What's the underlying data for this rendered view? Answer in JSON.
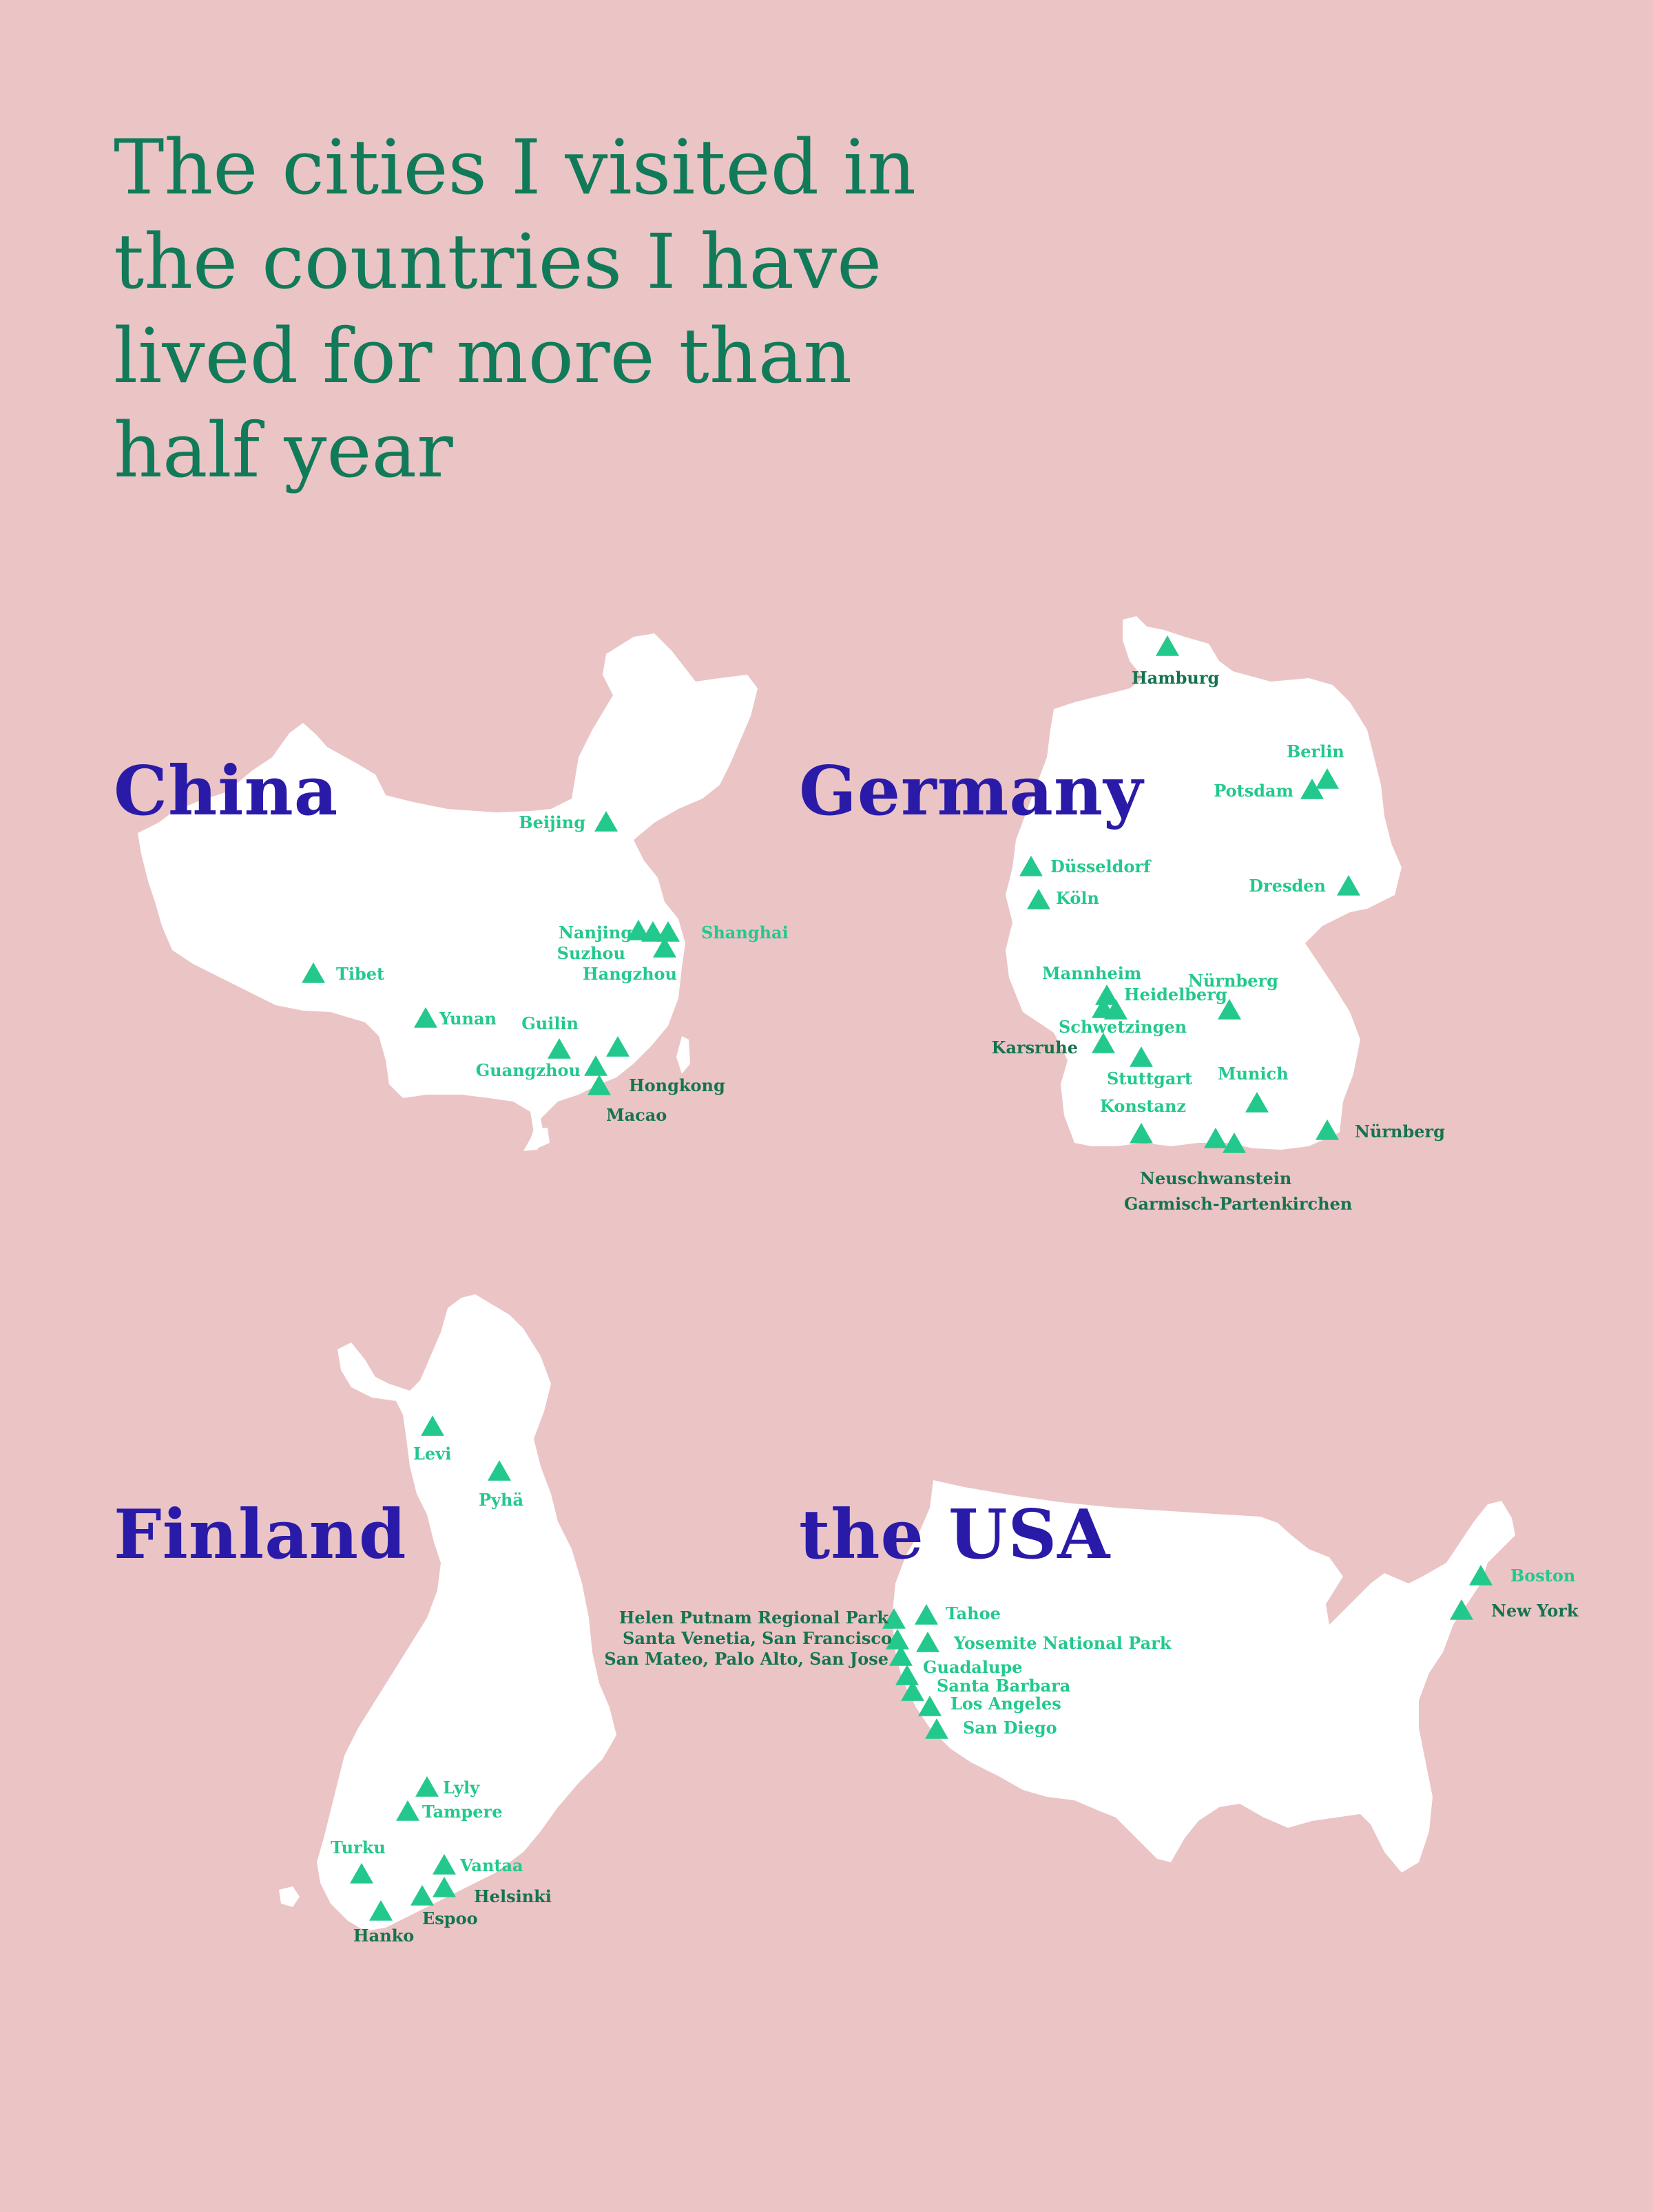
{
  "title": "The cities I visited in the countries I have lived for more than half year",
  "colors": {
    "background": "#ebc4c6",
    "title": "#117a58",
    "country": "#2a1aa8",
    "land": "#ffffff",
    "marker": "#23c98c",
    "label_light": "#23c98c",
    "label_dark": "#15744f"
  },
  "marker_shape": "triangle",
  "countries": [
    {
      "id": "china",
      "name": "China",
      "cities": [
        {
          "name": "Beijing"
        },
        {
          "name": "Nanjing"
        },
        {
          "name": "Shanghai"
        },
        {
          "name": "Suzhou"
        },
        {
          "name": "Hangzhou"
        },
        {
          "name": "Tibet"
        },
        {
          "name": "Yunan"
        },
        {
          "name": "Guilin"
        },
        {
          "name": "Guangzhou"
        },
        {
          "name": "Hongkong"
        },
        {
          "name": "Macao"
        }
      ]
    },
    {
      "id": "germany",
      "name": "Germany",
      "cities": [
        {
          "name": "Hamburg"
        },
        {
          "name": "Berlin"
        },
        {
          "name": "Potsdam"
        },
        {
          "name": "Düsseldorf"
        },
        {
          "name": "Köln"
        },
        {
          "name": "Dresden"
        },
        {
          "name": "Mannheim"
        },
        {
          "name": "Nürnberg"
        },
        {
          "name": "Heidelberg"
        },
        {
          "name": "Schwetzingen"
        },
        {
          "name": "Karsruhe"
        },
        {
          "name": "Stuttgart"
        },
        {
          "name": "Munich"
        },
        {
          "name": "Konstanz"
        },
        {
          "name": "Nürnberg"
        },
        {
          "name": "Neuschwanstein"
        },
        {
          "name": "Garmisch-Partenkirchen"
        }
      ]
    },
    {
      "id": "finland",
      "name": "Finland",
      "cities": [
        {
          "name": "Levi"
        },
        {
          "name": "Pyhä"
        },
        {
          "name": "Lyly"
        },
        {
          "name": "Tampere"
        },
        {
          "name": "Turku"
        },
        {
          "name": "Vantaa"
        },
        {
          "name": "Helsinki"
        },
        {
          "name": "Espoo"
        },
        {
          "name": "Hanko"
        }
      ]
    },
    {
      "id": "usa",
      "name": "the USA",
      "cities": [
        {
          "name": "Helen Putnam Regional Park"
        },
        {
          "name": "Tahoe"
        },
        {
          "name": "Santa Venetia,  San Francisco"
        },
        {
          "name": "Yosemite National Park"
        },
        {
          "name": "San Mateo, Palo Alto, San Jose"
        },
        {
          "name": "Guadalupe"
        },
        {
          "name": "Santa Barbara"
        },
        {
          "name": "Los Angeles"
        },
        {
          "name": "San Diego"
        },
        {
          "name": "Boston"
        },
        {
          "name": "New York"
        }
      ]
    }
  ]
}
